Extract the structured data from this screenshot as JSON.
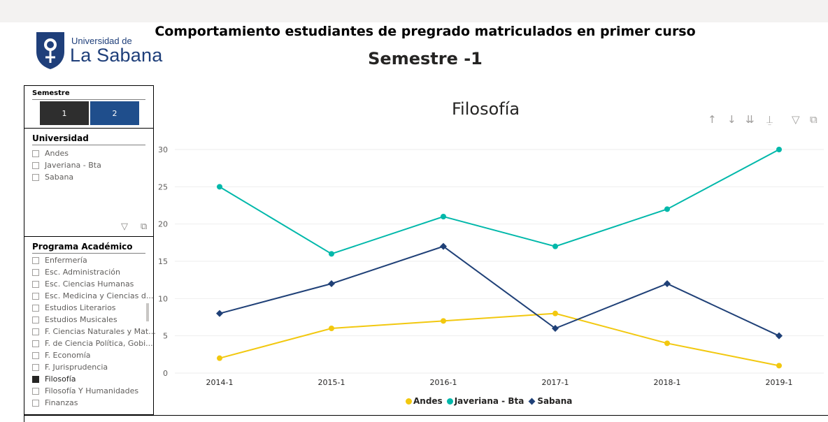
{
  "logo": {
    "line1": "Universidad de",
    "line2": "La Sabana"
  },
  "header": {
    "title": "Comportamiento estudiantes de pregrado matriculados en primer curso",
    "subtitle": "Semestre -1"
  },
  "slicers": {
    "semestre": {
      "title": "Semestre",
      "options": [
        "1",
        "2"
      ]
    },
    "universidad": {
      "title": "Universidad",
      "items": [
        "Andes",
        "Javeriana - Bta",
        "Sabana"
      ]
    },
    "programa": {
      "title": "Programa Académico",
      "items": [
        "Enfermería",
        "Esc. Administración",
        "Esc. Ciencias Humanas",
        "Esc. Medicina y Ciencias d...",
        "Estudios Literarios",
        "Estudios Musicales",
        "F. Ciencias Naturales y Mat...",
        "F. de Ciencia Política, Gobi...",
        "F. Economía",
        "F. Jurisprudencia",
        "Filosofía",
        "Filosofía Y Humanidades",
        "Finanzas"
      ],
      "selected": "Filosofía"
    }
  },
  "visual_icons": [
    "arrow-up-icon",
    "arrow-down-icon",
    "double-arrow-down-icon",
    "expand-hierarchy-icon",
    "filter-icon",
    "focus-mode-icon"
  ],
  "colors": {
    "andes": "#f2c80f",
    "javeriana": "#01b8aa",
    "sabana": "#1f4077"
  },
  "chart_data": {
    "type": "line",
    "title": "Filosofía",
    "categories": [
      "2014-1",
      "2015-1",
      "2016-1",
      "2017-1",
      "2018-1",
      "2019-1"
    ],
    "series": [
      {
        "name": "Andes",
        "values": [
          2,
          6,
          7,
          8,
          4,
          1
        ]
      },
      {
        "name": "Javeriana - Bta",
        "values": [
          25,
          16,
          21,
          17,
          22,
          30
        ]
      },
      {
        "name": "Sabana",
        "values": [
          8,
          12,
          17,
          6,
          12,
          5
        ]
      }
    ],
    "yticks": [
      0,
      5,
      10,
      15,
      20,
      25,
      30
    ],
    "ylim": [
      0,
      30
    ],
    "grid": true,
    "legend": "bottom-center"
  }
}
